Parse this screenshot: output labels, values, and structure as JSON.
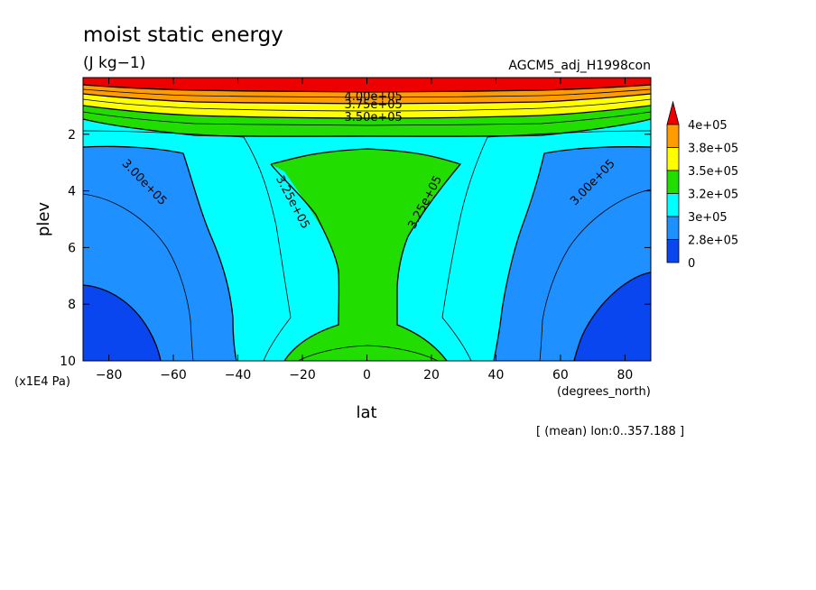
{
  "chart_data": {
    "type": "contour",
    "title": "moist static energy",
    "units": "(J kg−1)",
    "dataset": "AGCM5_adj_H1998con",
    "xlabel": "lat",
    "xunits": "(degrees_north)",
    "ylabel": "plev",
    "yunits": "(x1E4 Pa)",
    "note": "[ (mean) lon:0..357.188 ]",
    "xlim": [
      -88,
      88
    ],
    "ylim": [
      10,
      0
    ],
    "x_ticks": [
      -80,
      -60,
      -40,
      -20,
      0,
      20,
      40,
      60,
      80
    ],
    "x_tick_labels": [
      "−80",
      "−60",
      "−40",
      "−20",
      "0",
      "20",
      "40",
      "60",
      "80"
    ],
    "y_ticks": [
      2,
      4,
      6,
      8,
      10
    ],
    "y_tick_labels": [
      "2",
      "4",
      "6",
      "8",
      "10"
    ],
    "levels": [
      {
        "label": "4e+05",
        "color": "#ee0000"
      },
      {
        "label": "3.8e+05",
        "color": "#ff9c00"
      },
      {
        "label": "3.5e+05",
        "color": "#ffff00"
      },
      {
        "label": "3.2e+05",
        "color": "#22dd00"
      },
      {
        "label": "3e+05",
        "color": "#00ffff"
      },
      {
        "label": "2.8e+05",
        "color": "#1e90ff"
      },
      {
        "label": "0",
        "color": "#0a46f0"
      }
    ],
    "contour_labels": [
      {
        "text": "4.00e+05",
        "x": 2,
        "y": 0.67,
        "angle": 0
      },
      {
        "text": "3.75e+05",
        "x": 2,
        "y": 0.95,
        "angle": 0
      },
      {
        "text": "3.50e+05",
        "x": 2,
        "y": 1.4,
        "angle": 0
      },
      {
        "text": "3.00e+05",
        "x": -69,
        "y": 3.7,
        "angle": 46
      },
      {
        "text": "3.25e+05",
        "x": -23,
        "y": 4.4,
        "angle": 62
      },
      {
        "text": "3.25e+05",
        "x": 18,
        "y": 4.4,
        "angle": -62
      },
      {
        "text": "3.00e+05",
        "x": 70,
        "y": 3.7,
        "angle": -46
      }
    ]
  }
}
